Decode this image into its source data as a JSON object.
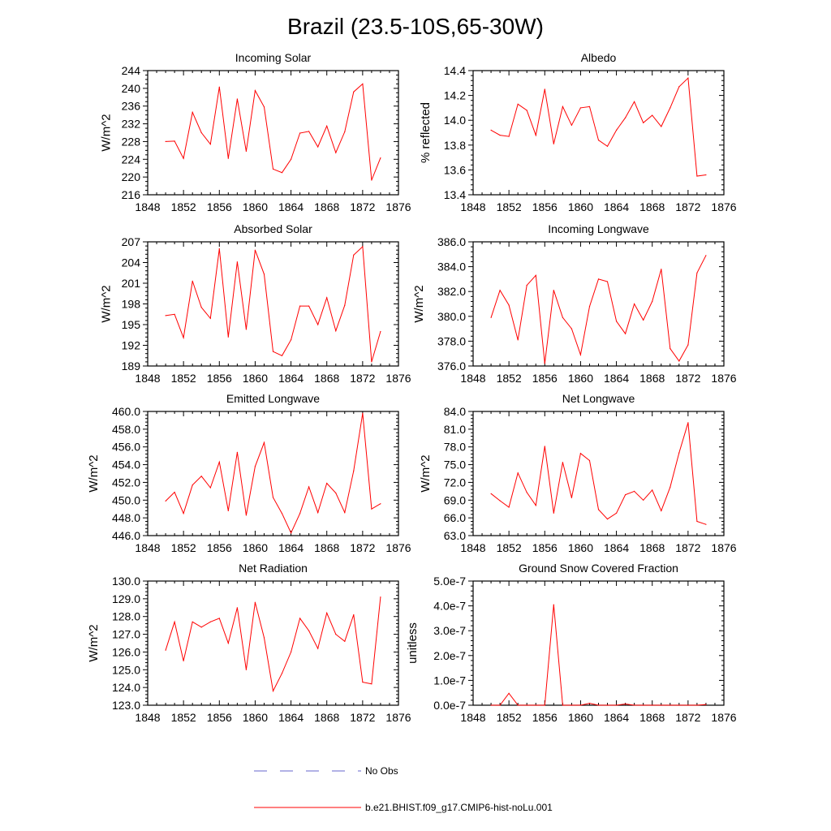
{
  "title": "Brazil (23.5-10S,65-30W)",
  "colors": {
    "model": "#ff0000",
    "obs": "#6666cc",
    "frame": "#000000"
  },
  "legend": {
    "entries": [
      {
        "label": "No Obs",
        "style": "dashed",
        "color": "#6666cc"
      },
      {
        "label": "b.e21.BHIST.f09_g17.CMIP6-hist-noLu.001",
        "style": "solid",
        "color": "#ff0000"
      }
    ]
  },
  "chart_data": [
    {
      "type": "line",
      "title": "Incoming Solar",
      "xlabel": "",
      "ylabel": "W/m^2",
      "xlim": [
        1848,
        1876
      ],
      "xticks": [
        "1848",
        "1852",
        "1856",
        "1860",
        "1864",
        "1868",
        "1872",
        "1876"
      ],
      "ylim": [
        216,
        244
      ],
      "yticks": [
        "216",
        "220",
        "224",
        "228",
        "232",
        "236",
        "240",
        "244"
      ],
      "x": [
        1850,
        1851,
        1852,
        1853,
        1854,
        1855,
        1856,
        1857,
        1858,
        1859,
        1860,
        1861,
        1862,
        1863,
        1864,
        1865,
        1866,
        1867,
        1868,
        1869,
        1870,
        1871,
        1872,
        1873,
        1874
      ],
      "series": [
        {
          "name": "b.e21.BHIST.f09_g17.CMIP6-hist-noLu.001",
          "values": [
            228.0,
            228.1,
            224.2,
            234.6,
            230.0,
            227.4,
            240.3,
            224.2,
            237.6,
            225.8,
            239.5,
            235.8,
            221.8,
            221.0,
            224.0,
            229.9,
            230.3,
            226.8,
            231.5,
            225.5,
            230.2,
            239.2,
            241.0,
            219.3,
            224.3
          ]
        }
      ]
    },
    {
      "type": "line",
      "title": "Albedo",
      "xlabel": "",
      "ylabel": "% reflected",
      "xlim": [
        1848,
        1876
      ],
      "xticks": [
        "1848",
        "1852",
        "1856",
        "1860",
        "1864",
        "1868",
        "1872",
        "1876"
      ],
      "ylim": [
        13.4,
        14.4
      ],
      "yticks": [
        "13.4",
        "13.6",
        "13.8",
        "14.0",
        "14.2",
        "14.4"
      ],
      "x": [
        1850,
        1851,
        1852,
        1853,
        1854,
        1855,
        1856,
        1857,
        1858,
        1859,
        1860,
        1861,
        1862,
        1863,
        1864,
        1865,
        1866,
        1867,
        1868,
        1869,
        1870,
        1871,
        1872,
        1873,
        1874
      ],
      "series": [
        {
          "name": "b.e21.BHIST.f09_g17.CMIP6-hist-noLu.001",
          "values": [
            13.92,
            13.88,
            13.87,
            14.13,
            14.08,
            13.88,
            14.25,
            13.81,
            14.11,
            13.96,
            14.1,
            14.11,
            13.84,
            13.79,
            13.92,
            14.02,
            14.15,
            13.98,
            14.04,
            13.95,
            14.1,
            14.27,
            14.34,
            13.55,
            13.56
          ]
        }
      ]
    },
    {
      "type": "line",
      "title": "Absorbed Solar",
      "xlabel": "",
      "ylabel": "W/m^2",
      "xlim": [
        1848,
        1876
      ],
      "xticks": [
        "1848",
        "1852",
        "1856",
        "1860",
        "1864",
        "1868",
        "1872",
        "1876"
      ],
      "ylim": [
        189,
        207
      ],
      "yticks": [
        "189",
        "192",
        "195",
        "198",
        "201",
        "204",
        "207"
      ],
      "x": [
        1850,
        1851,
        1852,
        1853,
        1854,
        1855,
        1856,
        1857,
        1858,
        1859,
        1860,
        1861,
        1862,
        1863,
        1864,
        1865,
        1866,
        1867,
        1868,
        1869,
        1870,
        1871,
        1872,
        1873,
        1874
      ],
      "series": [
        {
          "name": "b.e21.BHIST.f09_g17.CMIP6-hist-noLu.001",
          "values": [
            196.3,
            196.5,
            193.1,
            201.3,
            197.5,
            195.9,
            206.0,
            193.2,
            204.1,
            194.3,
            205.8,
            202.3,
            191.1,
            190.5,
            192.8,
            197.7,
            197.7,
            195.0,
            198.9,
            194.1,
            197.8,
            205.1,
            206.3,
            189.6,
            194.0
          ]
        }
      ]
    },
    {
      "type": "line",
      "title": "Incoming Longwave",
      "xlabel": "",
      "ylabel": "W/m^2",
      "xlim": [
        1848,
        1876
      ],
      "xticks": [
        "1848",
        "1852",
        "1856",
        "1860",
        "1864",
        "1868",
        "1872",
        "1876"
      ],
      "ylim": [
        376.0,
        386.0
      ],
      "yticks": [
        "376.0",
        "378.0",
        "380.0",
        "382.0",
        "384.0",
        "386.0"
      ],
      "x": [
        1850,
        1851,
        1852,
        1853,
        1854,
        1855,
        1856,
        1857,
        1858,
        1859,
        1860,
        1861,
        1862,
        1863,
        1864,
        1865,
        1866,
        1867,
        1868,
        1869,
        1870,
        1871,
        1872,
        1873,
        1874
      ],
      "series": [
        {
          "name": "b.e21.BHIST.f09_g17.CMIP6-hist-noLu.001",
          "values": [
            379.9,
            382.1,
            380.9,
            378.1,
            382.5,
            383.3,
            376.2,
            382.1,
            379.9,
            379.0,
            376.9,
            380.8,
            383.0,
            382.8,
            379.6,
            378.6,
            381.0,
            379.7,
            381.2,
            383.8,
            377.4,
            376.4,
            377.7,
            383.5,
            384.9
          ]
        }
      ]
    },
    {
      "type": "line",
      "title": "Emitted Longwave",
      "xlabel": "",
      "ylabel": "W/m^2",
      "xlim": [
        1848,
        1876
      ],
      "xticks": [
        "1848",
        "1852",
        "1856",
        "1860",
        "1864",
        "1868",
        "1872",
        "1876"
      ],
      "ylim": [
        446.0,
        460.0
      ],
      "yticks": [
        "446.0",
        "448.0",
        "450.0",
        "452.0",
        "454.0",
        "456.0",
        "458.0",
        "460.0"
      ],
      "x": [
        1850,
        1851,
        1852,
        1853,
        1854,
        1855,
        1856,
        1857,
        1858,
        1859,
        1860,
        1861,
        1862,
        1863,
        1864,
        1865,
        1866,
        1867,
        1868,
        1869,
        1870,
        1871,
        1872,
        1873,
        1874
      ],
      "series": [
        {
          "name": "b.e21.BHIST.f09_g17.CMIP6-hist-noLu.001",
          "values": [
            449.9,
            450.9,
            448.5,
            451.7,
            452.7,
            451.4,
            454.3,
            448.8,
            455.4,
            448.3,
            453.8,
            456.5,
            450.3,
            448.5,
            446.3,
            448.5,
            451.5,
            448.6,
            451.9,
            450.8,
            448.6,
            453.3,
            459.8,
            449.0,
            449.6
          ]
        }
      ]
    },
    {
      "type": "line",
      "title": "Net Longwave",
      "xlabel": "",
      "ylabel": "W/m^2",
      "xlim": [
        1848,
        1876
      ],
      "xticks": [
        "1848",
        "1852",
        "1856",
        "1860",
        "1864",
        "1868",
        "1872",
        "1876"
      ],
      "ylim": [
        63.0,
        84.0
      ],
      "yticks": [
        "63.0",
        "66.0",
        "69.0",
        "72.0",
        "75.0",
        "78.0",
        "81.0",
        "84.0"
      ],
      "x": [
        1850,
        1851,
        1852,
        1853,
        1854,
        1855,
        1856,
        1857,
        1858,
        1859,
        1860,
        1861,
        1862,
        1863,
        1864,
        1865,
        1866,
        1867,
        1868,
        1869,
        1870,
        1871,
        1872,
        1873,
        1874
      ],
      "series": [
        {
          "name": "b.e21.BHIST.f09_g17.CMIP6-hist-noLu.001",
          "values": [
            70.1,
            68.9,
            67.8,
            73.6,
            70.3,
            68.1,
            78.1,
            66.8,
            75.4,
            69.4,
            76.9,
            75.7,
            67.4,
            65.8,
            66.8,
            69.9,
            70.5,
            69.0,
            70.7,
            67.2,
            71.2,
            77.0,
            82.1,
            65.4,
            64.9
          ]
        }
      ]
    },
    {
      "type": "line",
      "title": "Net Radiation",
      "xlabel": "",
      "ylabel": "W/m^2",
      "xlim": [
        1848,
        1876
      ],
      "xticks": [
        "1848",
        "1852",
        "1856",
        "1860",
        "1864",
        "1868",
        "1872",
        "1876"
      ],
      "ylim": [
        123.0,
        130.0
      ],
      "yticks": [
        "123.0",
        "124.0",
        "125.0",
        "126.0",
        "127.0",
        "128.0",
        "129.0",
        "130.0"
      ],
      "x": [
        1850,
        1851,
        1852,
        1853,
        1854,
        1855,
        1856,
        1857,
        1858,
        1859,
        1860,
        1861,
        1862,
        1863,
        1864,
        1865,
        1866,
        1867,
        1868,
        1869,
        1870,
        1871,
        1872,
        1873,
        1874
      ],
      "series": [
        {
          "name": "b.e21.BHIST.f09_g17.CMIP6-hist-noLu.001",
          "values": [
            126.1,
            127.7,
            125.5,
            127.7,
            127.4,
            127.7,
            127.9,
            126.5,
            128.5,
            125.0,
            128.8,
            126.8,
            123.8,
            124.8,
            126.0,
            127.9,
            127.2,
            126.2,
            128.2,
            127.0,
            126.6,
            128.1,
            124.3,
            124.2,
            129.1
          ]
        }
      ]
    },
    {
      "type": "line",
      "title": "Ground Snow Covered Fraction",
      "xlabel": "",
      "ylabel": "unitless",
      "xlim": [
        1848,
        1876
      ],
      "xticks": [
        "1848",
        "1852",
        "1856",
        "1860",
        "1864",
        "1868",
        "1872",
        "1876"
      ],
      "ylim": [
        0.0,
        5e-07
      ],
      "yticks": [
        "0.0e-7",
        "1.0e-7",
        "2.0e-7",
        "3.0e-7",
        "4.0e-7",
        "5.0e-7"
      ],
      "x": [
        1850,
        1851,
        1852,
        1853,
        1854,
        1855,
        1856,
        1857,
        1858,
        1859,
        1860,
        1861,
        1862,
        1863,
        1864,
        1865,
        1866,
        1867,
        1868,
        1869,
        1870,
        1871,
        1872,
        1873,
        1874
      ],
      "series": [
        {
          "name": "b.e21.BHIST.f09_g17.CMIP6-hist-noLu.001",
          "values": [
            0,
            0,
            4.8e-08,
            0,
            0,
            0,
            0,
            4.05e-07,
            0,
            0,
            0,
            8e-09,
            0,
            0,
            0,
            5e-09,
            0,
            0,
            0,
            0,
            0,
            0,
            0,
            0,
            3e-09
          ]
        }
      ]
    }
  ]
}
